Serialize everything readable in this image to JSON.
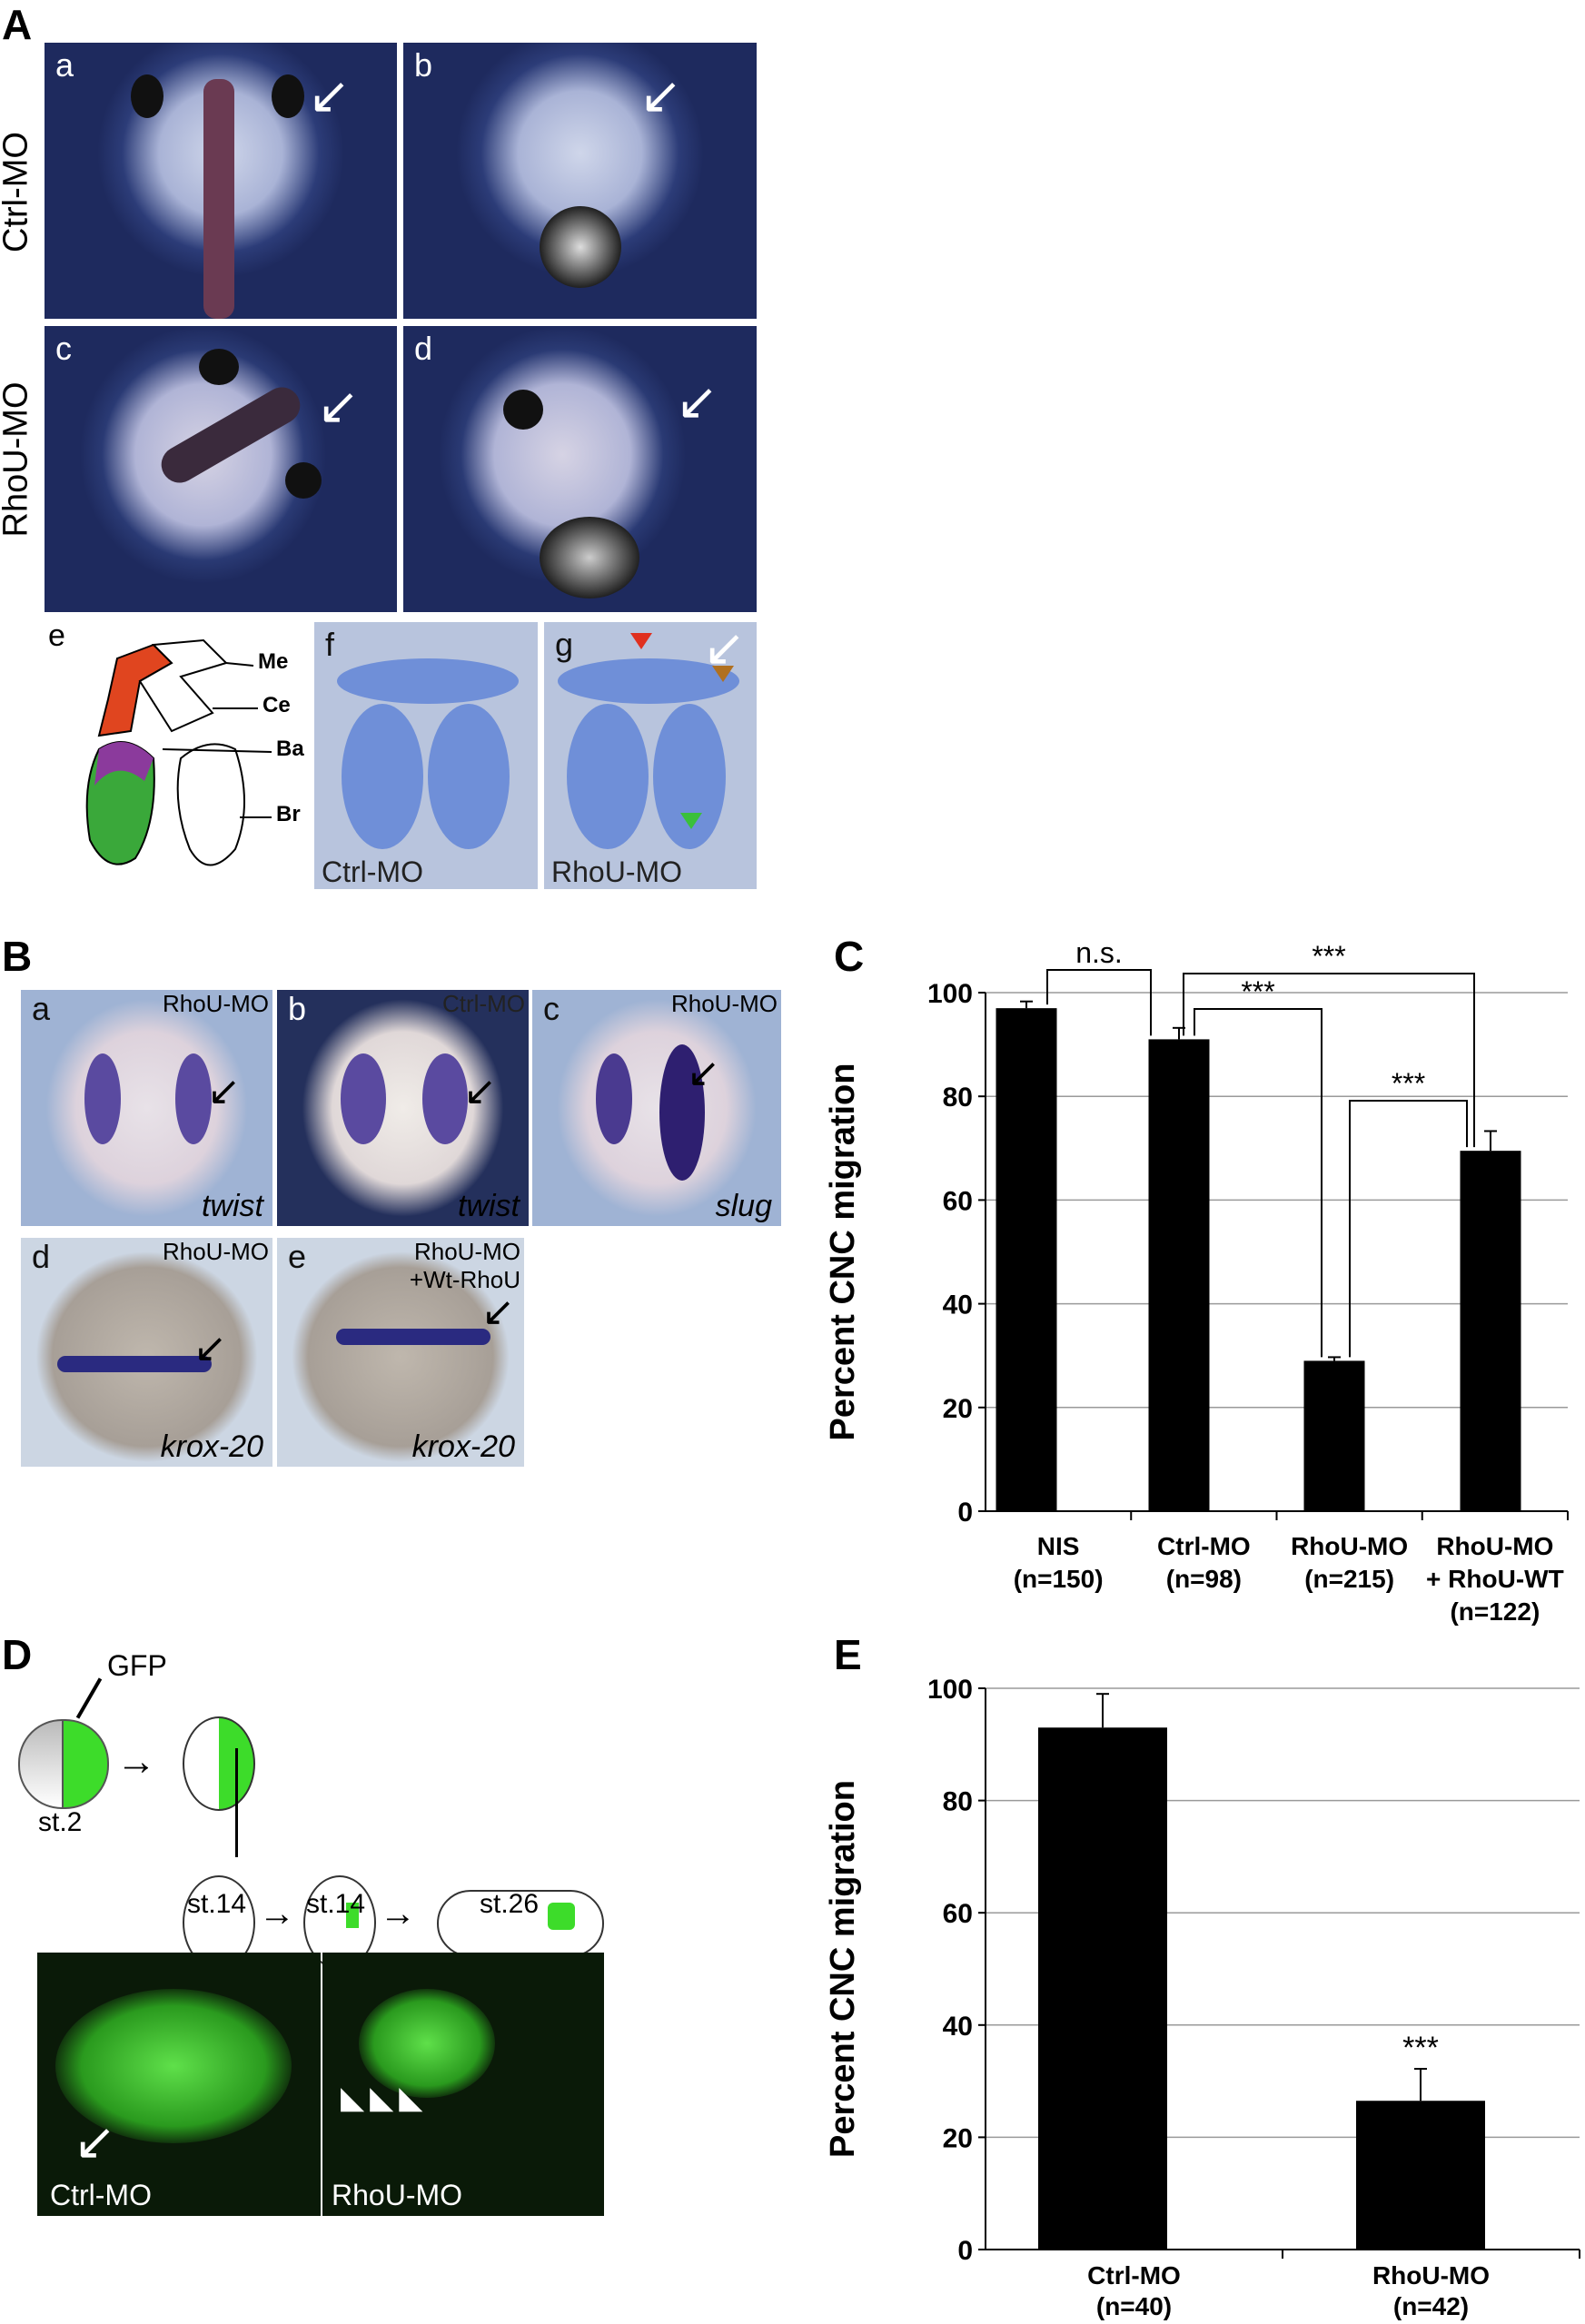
{
  "panels": {
    "A": {
      "label": "A",
      "row_labels": [
        "Ctrl-MO",
        "RhoU-MO"
      ],
      "subpanels": [
        "a",
        "b",
        "c",
        "d",
        "e",
        "f",
        "g"
      ],
      "diagram_labels": [
        "Me",
        "Ce",
        "Ba",
        "Br"
      ],
      "f_caption": "Ctrl-MO",
      "g_caption": "RhoU-MO"
    },
    "B": {
      "label": "B",
      "subpanels": [
        {
          "letter": "a",
          "condition": "RhoU-MO",
          "gene": "twist"
        },
        {
          "letter": "b",
          "condition": "Ctrl-MO",
          "gene": "twist"
        },
        {
          "letter": "c",
          "condition": "RhoU-MO",
          "gene": "slug"
        },
        {
          "letter": "d",
          "condition": "RhoU-MO",
          "gene": "krox-20"
        },
        {
          "letter": "e",
          "condition": "RhoU-MO",
          "condition2": "+Wt-RhoU",
          "gene": "krox-20"
        }
      ]
    },
    "D": {
      "label": "D",
      "gfp_label": "GFP",
      "stages": [
        "st.2",
        "st.14",
        "st.14",
        "st.26"
      ],
      "captions": [
        "Ctrl-MO",
        "RhoU-MO"
      ]
    },
    "colors": {
      "gfp_green": "#3ddc2a",
      "cartilage_blue": "#6f8fd8",
      "diagram_red": "#e0451f",
      "diagram_purple": "#8b3a9c",
      "diagram_green": "#3aa83a",
      "bar": "#000000"
    }
  },
  "chart_data": [
    {
      "panel": "C",
      "type": "bar",
      "categories": [
        "NIS",
        "Ctrl-MO",
        "RhoU-MO",
        "RhoU-MO"
      ],
      "category_lines2": [
        "(n=150)",
        "(n=98)",
        "(n=215)",
        "+ RhoU-WT"
      ],
      "category_lines3": [
        "",
        "",
        "",
        "(n=122)"
      ],
      "values": [
        97,
        91,
        29,
        69.5
      ],
      "errors": [
        1.3,
        2.2,
        0.7,
        3.8
      ],
      "ylabel": "Percent CNC migration",
      "ylim": [
        0,
        100
      ],
      "yticks": [
        "0",
        "20",
        "40",
        "60",
        "80",
        "100"
      ],
      "grid": true,
      "significance": [
        {
          "from": 0,
          "to": 1,
          "label": "n.s."
        },
        {
          "from": 1,
          "to": 3,
          "label": "***"
        },
        {
          "from": 1,
          "to": 2,
          "label": "***"
        },
        {
          "from": 2,
          "to": 3,
          "label": "***"
        }
      ]
    },
    {
      "panel": "E",
      "type": "bar",
      "categories": [
        "Ctrl-MO",
        "RhoU-MO"
      ],
      "category_lines2": [
        "(n=40)",
        "(n=42)"
      ],
      "values": [
        93,
        26.5
      ],
      "errors": [
        6,
        5.7
      ],
      "ylabel": "Percent CNC migration",
      "ylim": [
        0,
        100
      ],
      "yticks": [
        "0",
        "20",
        "40",
        "60",
        "80",
        "100"
      ],
      "grid": true,
      "bar_annotations": [
        "",
        "***"
      ]
    }
  ]
}
